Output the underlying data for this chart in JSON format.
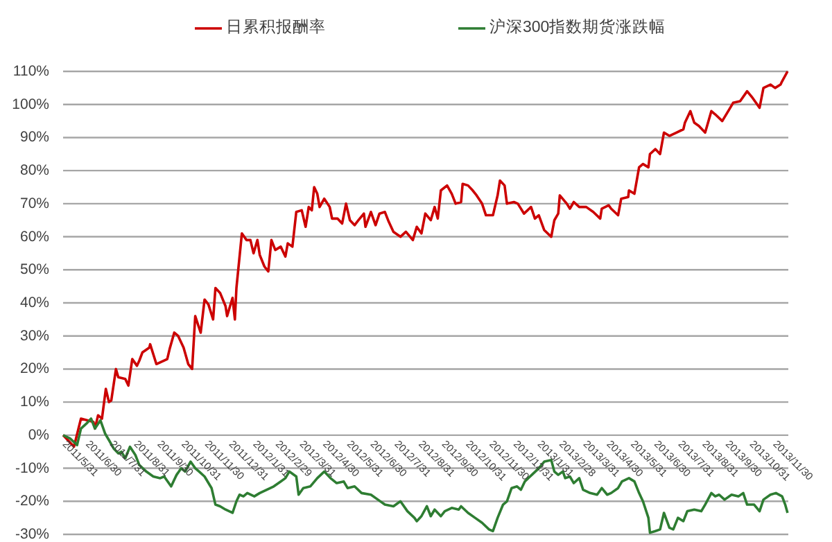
{
  "chart_data": {
    "type": "line",
    "series": [
      {
        "name": "日累积报酬率",
        "color": "#cc0000",
        "x": [
          "2011-05-31",
          "2011-06-14",
          "2011-06-23",
          "2011-07-09",
          "2011-07-11",
          "2011-07-15",
          "2011-07-20",
          "2011-07-25",
          "2011-07-29",
          "2011-08-01",
          "2011-08-07",
          "2011-08-10",
          "2011-08-19",
          "2011-08-23",
          "2011-08-28",
          "2011-09-03",
          "2011-09-06",
          "2011-09-10",
          "2011-09-19",
          "2011-09-20",
          "2011-09-28",
          "2011-10-12",
          "2011-10-15",
          "2011-10-21",
          "2011-10-26",
          "2011-11-02",
          "2011-11-08",
          "2011-11-13",
          "2011-11-17",
          "2011-11-24",
          "2011-11-29",
          "2011-12-04",
          "2011-12-10",
          "2011-12-13",
          "2011-12-19",
          "2011-12-26",
          "2011-12-28",
          "2012-01-04",
          "2012-01-07",
          "2012-01-09",
          "2012-01-16",
          "2012-01-22",
          "2012-01-27",
          "2012-01-31",
          "2012-02-05",
          "2012-02-08",
          "2012-02-14",
          "2012-02-19",
          "2012-02-23",
          "2012-02-28",
          "2012-03-06",
          "2012-03-12",
          "2012-03-15",
          "2012-03-21",
          "2012-03-26",
          "2012-04-02",
          "2012-04-07",
          "2012-04-11",
          "2012-04-15",
          "2012-04-18",
          "2012-04-22",
          "2012-04-25",
          "2012-05-01",
          "2012-05-08",
          "2012-05-11",
          "2012-05-18",
          "2012-05-24",
          "2012-05-29",
          "2012-06-03",
          "2012-06-09",
          "2012-06-14",
          "2012-06-21",
          "2012-06-23",
          "2012-06-30",
          "2012-07-06",
          "2012-07-11",
          "2012-07-18",
          "2012-07-23",
          "2012-07-29",
          "2012-08-07",
          "2012-08-14",
          "2012-08-23",
          "2012-08-28",
          "2012-09-03",
          "2012-09-08",
          "2012-09-15",
          "2012-09-20",
          "2012-09-24",
          "2012-09-28",
          "2012-10-06",
          "2012-10-12",
          "2012-10-17",
          "2012-10-24",
          "2012-10-26",
          "2012-11-02",
          "2012-11-08",
          "2012-11-13",
          "2012-11-20",
          "2012-11-25",
          "2012-12-04",
          "2012-12-10",
          "2012-12-13",
          "2012-12-19",
          "2012-12-22",
          "2012-12-31",
          "2013-01-05",
          "2013-01-13",
          "2013-01-22",
          "2013-01-27",
          "2013-02-01",
          "2013-02-08",
          "2013-02-17",
          "2013-02-21",
          "2013-02-26",
          "2013-02-28",
          "2013-03-09",
          "2013-03-13",
          "2013-03-18",
          "2013-03-25",
          "2013-04-03",
          "2013-04-12",
          "2013-04-21",
          "2013-04-23",
          "2013-05-02",
          "2013-05-05",
          "2013-05-14",
          "2013-05-18",
          "2013-05-27",
          "2013-05-28",
          "2013-06-04",
          "2013-06-10",
          "2013-06-15",
          "2013-06-22",
          "2013-06-24",
          "2013-07-01",
          "2013-07-07",
          "2013-07-12",
          "2013-07-19",
          "2013-07-28",
          "2013-08-06",
          "2013-08-08",
          "2013-08-15",
          "2013-08-20",
          "2013-08-26",
          "2013-09-03",
          "2013-09-11",
          "2013-09-16",
          "2013-09-25",
          "2013-10-04",
          "2013-10-09",
          "2013-10-18",
          "2013-10-27",
          "2013-11-03",
          "2013-11-12",
          "2013-11-17",
          "2013-11-26",
          "2013-12-02",
          "2013-12-09",
          "2013-12-11",
          "2013-12-18"
        ],
        "values": [
          0,
          -3.5,
          5,
          4,
          2,
          6,
          5,
          14,
          10,
          10.5,
          20,
          17.5,
          17,
          15,
          23,
          21,
          22.5,
          25,
          26.5,
          27.5,
          21.5,
          23,
          26,
          31,
          30,
          26.5,
          21.5,
          20,
          36,
          31,
          41,
          39.5,
          35,
          44.5,
          43,
          39,
          36,
          41.5,
          35,
          44.5,
          61,
          59,
          59,
          55,
          59,
          54.5,
          51,
          49.5,
          59,
          56,
          57,
          54,
          58,
          57,
          67.5,
          68,
          63,
          69,
          68,
          75,
          73,
          69,
          71.5,
          69,
          65.5,
          65.5,
          64,
          70,
          65,
          63.5,
          65,
          67,
          63,
          67.5,
          63.5,
          67,
          67.5,
          64.5,
          61.5,
          60,
          61.5,
          59,
          63,
          61,
          67,
          65,
          69,
          65.5,
          74,
          75.5,
          73,
          70,
          70.5,
          76,
          75.5,
          74,
          72.5,
          70,
          66.5,
          66.5,
          72.5,
          77,
          75.5,
          70,
          70.5,
          70,
          67,
          69,
          65.5,
          66.5,
          62,
          60,
          65,
          67,
          72.5,
          70,
          68.5,
          70.5,
          69,
          69,
          67.5,
          65.5,
          68.5,
          69.5,
          68.5,
          66.5,
          71.5,
          72,
          74,
          73,
          81,
          82,
          81,
          85,
          86.5,
          85,
          91.5,
          90.5,
          91.5,
          92.5,
          94.5,
          98,
          94.5,
          93.5,
          91.5,
          98,
          97,
          95,
          98.5,
          100.5,
          101,
          104,
          102,
          99,
          105,
          106,
          105,
          106,
          107,
          110
        ]
      },
      {
        "name": "沪深300指数期货涨跌幅",
        "color": "#2e7d32",
        "x": [
          "2011-05-31",
          "2011-06-09",
          "2011-06-18",
          "2011-06-23",
          "2011-06-30",
          "2011-07-06",
          "2011-07-11",
          "2011-07-18",
          "2011-07-24",
          "2011-07-29",
          "2011-08-04",
          "2011-08-10",
          "2011-08-14",
          "2011-08-19",
          "2011-08-25",
          "2011-09-01",
          "2011-09-06",
          "2011-09-15",
          "2011-09-24",
          "2011-10-03",
          "2011-10-08",
          "2011-10-17",
          "2011-10-24",
          "2011-10-30",
          "2011-11-04",
          "2011-11-11",
          "2011-11-17",
          "2011-11-22",
          "2011-11-29",
          "2011-12-08",
          "2011-12-13",
          "2011-12-19",
          "2011-12-26",
          "2012-01-04",
          "2012-01-09",
          "2012-01-13",
          "2012-01-18",
          "2012-01-23",
          "2012-02-01",
          "2012-02-08",
          "2012-02-17",
          "2012-02-26",
          "2012-03-06",
          "2012-03-12",
          "2012-03-17",
          "2012-03-26",
          "2012-03-29",
          "2012-04-04",
          "2012-04-13",
          "2012-04-22",
          "2012-05-01",
          "2012-05-09",
          "2012-05-17",
          "2012-05-26",
          "2012-05-31",
          "2012-06-09",
          "2012-06-18",
          "2012-06-30",
          "2012-07-09",
          "2012-07-18",
          "2012-07-29",
          "2012-08-07",
          "2012-08-16",
          "2012-08-25",
          "2012-08-28",
          "2012-09-03",
          "2012-09-10",
          "2012-09-15",
          "2012-09-20",
          "2012-09-28",
          "2012-10-03",
          "2012-10-12",
          "2012-10-21",
          "2012-10-24",
          "2012-11-02",
          "2012-11-11",
          "2012-11-20",
          "2012-11-29",
          "2012-12-04",
          "2012-12-10",
          "2012-12-17",
          "2012-12-22",
          "2012-12-28",
          "2013-01-04",
          "2013-01-09",
          "2013-01-14",
          "2013-01-23",
          "2013-02-01",
          "2013-02-08",
          "2013-02-17",
          "2013-02-21",
          "2013-02-26",
          "2013-03-04",
          "2013-03-07",
          "2013-03-13",
          "2013-03-18",
          "2013-03-25",
          "2013-03-30",
          "2013-04-08",
          "2013-04-17",
          "2013-04-23",
          "2013-04-30",
          "2013-05-05",
          "2013-05-14",
          "2013-05-19",
          "2013-05-28",
          "2013-06-04",
          "2013-06-10",
          "2013-06-15",
          "2013-06-22",
          "2013-06-24",
          "2013-07-01",
          "2013-07-07",
          "2013-07-12",
          "2013-07-19",
          "2013-07-24",
          "2013-07-30",
          "2013-08-06",
          "2013-08-11",
          "2013-08-20",
          "2013-08-29",
          "2013-09-03",
          "2013-09-11",
          "2013-09-16",
          "2013-09-21",
          "2013-09-28",
          "2013-10-07",
          "2013-10-16",
          "2013-10-22",
          "2013-10-27",
          "2013-11-05",
          "2013-11-12",
          "2013-11-17",
          "2013-11-26",
          "2013-12-03",
          "2013-12-11",
          "2013-12-15",
          "2013-12-18"
        ],
        "values": [
          0,
          -1,
          -3,
          2,
          3.5,
          5,
          2,
          4.5,
          0.5,
          -1.5,
          -4,
          -5.5,
          -5,
          -7,
          -3.5,
          -6,
          -9,
          -11,
          -12.5,
          -13,
          -12.5,
          -15.5,
          -12,
          -10,
          -11,
          -8,
          -10,
          -11,
          -12.5,
          -16,
          -21,
          -21.5,
          -22.5,
          -23.5,
          -20,
          -18,
          -18.5,
          -17.5,
          -18.5,
          -17.5,
          -16.5,
          -15.5,
          -14,
          -13,
          -11,
          -12.5,
          -18,
          -16,
          -15.5,
          -13,
          -11,
          -13,
          -14.5,
          -14,
          -16,
          -15.5,
          -17.5,
          -18,
          -19.5,
          -21,
          -21.5,
          -20,
          -23,
          -25,
          -26,
          -24.5,
          -21.5,
          -24.5,
          -22.5,
          -24.5,
          -23,
          -22,
          -22.5,
          -21.5,
          -23.5,
          -25,
          -26.5,
          -28.5,
          -29,
          -25,
          -21,
          -20,
          -16,
          -15.5,
          -16.5,
          -14,
          -12,
          -10,
          -8,
          -7.5,
          -11,
          -12,
          -11,
          -13,
          -12.5,
          -14.5,
          -13,
          -16.5,
          -17.5,
          -18,
          -16,
          -18,
          -17.5,
          -16,
          -14,
          -13,
          -14,
          -17.5,
          -20,
          -25,
          -29.5,
          -29,
          -28.5,
          -23.5,
          -28,
          -28.5,
          -25,
          -26,
          -23,
          -22.5,
          -23,
          -21,
          -17.5,
          -18.5,
          -18,
          -19.5,
          -18,
          -18.5,
          -17.5,
          -21,
          -21,
          -23,
          -19.5,
          -18,
          -17.5,
          -18.5,
          -21,
          -23.5
        ]
      }
    ],
    "xlim": [
      "2011-05-31",
      "2013-12-19"
    ],
    "xticks": [
      {
        "value": "2011-05-31",
        "label": "2011/5/31"
      },
      {
        "value": "2011-06-30",
        "label": "2011/6/30"
      },
      {
        "value": "2011-07-31",
        "label": "2011/7/31"
      },
      {
        "value": "2011-08-31",
        "label": "2011/8/31"
      },
      {
        "value": "2011-09-30",
        "label": "2011/9/30"
      },
      {
        "value": "2011-10-31",
        "label": "2011/10/31"
      },
      {
        "value": "2011-11-30",
        "label": "2011/11/30"
      },
      {
        "value": "2011-12-31",
        "label": "2011/12/31"
      },
      {
        "value": "2012-01-31",
        "label": "2012/1/31"
      },
      {
        "value": "2012-02-29",
        "label": "2012/2/29"
      },
      {
        "value": "2012-03-31",
        "label": "2012/3/31"
      },
      {
        "value": "2012-04-30",
        "label": "2012/4/30"
      },
      {
        "value": "2012-05-31",
        "label": "2012/5/31"
      },
      {
        "value": "2012-06-30",
        "label": "2012/6/30"
      },
      {
        "value": "2012-07-31",
        "label": "2012/7/31"
      },
      {
        "value": "2012-08-31",
        "label": "2012/8/31"
      },
      {
        "value": "2012-09-30",
        "label": "2012/9/30"
      },
      {
        "value": "2012-10-31",
        "label": "2012/10/31"
      },
      {
        "value": "2012-11-30",
        "label": "2012/11/30"
      },
      {
        "value": "2012-12-31",
        "label": "2012/12/31"
      },
      {
        "value": "2013-01-31",
        "label": "2013/1/31"
      },
      {
        "value": "2013-02-28",
        "label": "2013/2/28"
      },
      {
        "value": "2013-03-31",
        "label": "2013/3/31"
      },
      {
        "value": "2013-04-30",
        "label": "2013/4/30"
      },
      {
        "value": "2013-05-31",
        "label": "2013/5/31"
      },
      {
        "value": "2013-06-30",
        "label": "2013/6/30"
      },
      {
        "value": "2013-07-31",
        "label": "2013/7/31"
      },
      {
        "value": "2013-08-31",
        "label": "2013/8/31"
      },
      {
        "value": "2013-09-30",
        "label": "2013/9/30"
      },
      {
        "value": "2013-10-31",
        "label": "2013/10/31"
      },
      {
        "value": "2013-11-30",
        "label": "2013/11/30"
      }
    ],
    "ylim": [
      -30,
      110
    ],
    "yticks": [
      {
        "value": -30,
        "label": "-30%"
      },
      {
        "value": -20,
        "label": "-20%"
      },
      {
        "value": -10,
        "label": "-10%"
      },
      {
        "value": 0,
        "label": "0%"
      },
      {
        "value": 10,
        "label": "10%"
      },
      {
        "value": 20,
        "label": "20%"
      },
      {
        "value": 30,
        "label": "30%"
      },
      {
        "value": 40,
        "label": "40%"
      },
      {
        "value": 50,
        "label": "50%"
      },
      {
        "value": 60,
        "label": "60%"
      },
      {
        "value": 70,
        "label": "70%"
      },
      {
        "value": 80,
        "label": "80%"
      },
      {
        "value": 90,
        "label": "90%"
      },
      {
        "value": 100,
        "label": "100%"
      },
      {
        "value": 110,
        "label": "110%"
      }
    ],
    "grid": "y",
    "legend": "top",
    "line_style": "solid"
  }
}
